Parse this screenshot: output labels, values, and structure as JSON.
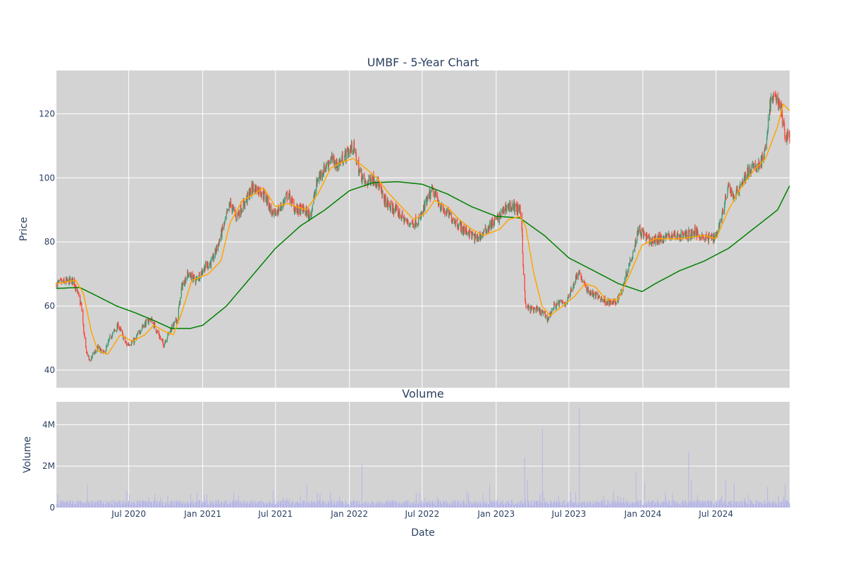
{
  "chart_data": [
    {
      "type": "candlestick",
      "title": "UMBF - 5-Year Chart",
      "xlabel": "",
      "ylabel": "Price",
      "ylim": [
        34.5,
        133.5
      ],
      "yticks": [
        40,
        60,
        80,
        100,
        120
      ],
      "xlim": [
        "2020-01-03",
        "2024-12-31"
      ],
      "grid": true,
      "colors": {
        "background": "#d3d3d3",
        "grid": "#ffffff",
        "up": "#3d9970",
        "down": "#ff4136",
        "ma_short": "#ffa500",
        "ma_long": "#008000"
      },
      "price_anchors": [
        [
          "2020-01-03",
          67
        ],
        [
          "2020-02-15",
          68
        ],
        [
          "2020-03-05",
          60
        ],
        [
          "2020-03-15",
          47
        ],
        [
          "2020-03-25",
          43
        ],
        [
          "2020-04-15",
          47
        ],
        [
          "2020-05-01",
          45
        ],
        [
          "2020-05-15",
          50
        ],
        [
          "2020-06-05",
          54
        ],
        [
          "2020-06-25",
          48
        ],
        [
          "2020-07-15",
          49
        ],
        [
          "2020-08-05",
          54
        ],
        [
          "2020-08-25",
          56
        ],
        [
          "2020-09-10",
          52
        ],
        [
          "2020-09-25",
          48
        ],
        [
          "2020-10-10",
          52
        ],
        [
          "2020-10-30",
          56
        ],
        [
          "2020-11-10",
          66
        ],
        [
          "2020-11-25",
          70
        ],
        [
          "2020-12-15",
          68
        ],
        [
          "2021-01-05",
          72
        ],
        [
          "2021-01-25",
          74
        ],
        [
          "2021-02-10",
          80
        ],
        [
          "2021-02-25",
          86
        ],
        [
          "2021-03-10",
          92
        ],
        [
          "2021-03-25",
          88
        ],
        [
          "2021-04-15",
          92
        ],
        [
          "2021-05-05",
          97
        ],
        [
          "2021-05-25",
          96
        ],
        [
          "2021-06-10",
          93
        ],
        [
          "2021-06-25",
          88
        ],
        [
          "2021-07-15",
          91
        ],
        [
          "2021-08-01",
          95
        ],
        [
          "2021-08-20",
          90
        ],
        [
          "2021-09-10",
          90
        ],
        [
          "2021-09-25",
          88
        ],
        [
          "2021-10-15",
          100
        ],
        [
          "2021-11-01",
          103
        ],
        [
          "2021-11-15",
          106
        ],
        [
          "2021-12-01",
          104
        ],
        [
          "2021-12-15",
          106
        ],
        [
          "2022-01-10",
          110
        ],
        [
          "2022-01-25",
          102
        ],
        [
          "2022-02-10",
          98
        ],
        [
          "2022-02-25",
          100
        ],
        [
          "2022-03-10",
          99
        ],
        [
          "2022-03-25",
          94
        ],
        [
          "2022-04-10",
          91
        ],
        [
          "2022-04-25",
          90
        ],
        [
          "2022-05-10",
          88
        ],
        [
          "2022-05-25",
          86
        ],
        [
          "2022-06-10",
          86
        ],
        [
          "2022-06-25",
          87
        ],
        [
          "2022-07-10",
          92
        ],
        [
          "2022-07-25",
          96
        ],
        [
          "2022-08-05",
          94
        ],
        [
          "2022-08-20",
          90
        ],
        [
          "2022-09-10",
          88
        ],
        [
          "2022-09-25",
          86
        ],
        [
          "2022-10-10",
          84
        ],
        [
          "2022-10-25",
          83
        ],
        [
          "2022-11-10",
          81
        ],
        [
          "2022-11-25",
          82
        ],
        [
          "2022-12-15",
          85
        ],
        [
          "2023-01-10",
          88
        ],
        [
          "2023-01-25",
          91
        ],
        [
          "2023-02-15",
          91
        ],
        [
          "2023-03-05",
          89
        ],
        [
          "2023-03-10",
          70
        ],
        [
          "2023-03-15",
          60
        ],
        [
          "2023-03-25",
          59
        ],
        [
          "2023-04-10",
          59
        ],
        [
          "2023-04-25",
          58
        ],
        [
          "2023-05-10",
          56
        ],
        [
          "2023-05-25",
          60
        ],
        [
          "2023-06-10",
          61
        ],
        [
          "2023-06-25",
          61
        ],
        [
          "2023-07-10",
          66
        ],
        [
          "2023-07-25",
          71
        ],
        [
          "2023-08-10",
          66
        ],
        [
          "2023-08-25",
          64
        ],
        [
          "2023-09-10",
          63
        ],
        [
          "2023-09-25",
          62
        ],
        [
          "2023-10-10",
          61
        ],
        [
          "2023-10-25",
          61
        ],
        [
          "2023-11-10",
          65
        ],
        [
          "2023-11-25",
          72
        ],
        [
          "2023-12-10",
          78
        ],
        [
          "2023-12-20",
          84
        ],
        [
          "2024-01-05",
          82
        ],
        [
          "2024-01-20",
          80
        ],
        [
          "2024-02-10",
          81
        ],
        [
          "2024-03-10",
          82
        ],
        [
          "2024-04-10",
          82
        ],
        [
          "2024-05-10",
          83
        ],
        [
          "2024-06-10",
          81
        ],
        [
          "2024-07-01",
          82
        ],
        [
          "2024-07-15",
          88
        ],
        [
          "2024-08-01",
          97
        ],
        [
          "2024-08-15",
          94
        ],
        [
          "2024-09-01",
          98
        ],
        [
          "2024-09-20",
          102
        ],
        [
          "2024-10-15",
          104
        ],
        [
          "2024-11-01",
          108
        ],
        [
          "2024-11-10",
          122
        ],
        [
          "2024-11-25",
          126
        ],
        [
          "2024-12-10",
          121
        ],
        [
          "2024-12-20",
          113
        ],
        [
          "2024-12-31",
          113
        ]
      ],
      "ma_short_anchors": [
        [
          "2020-01-03",
          67
        ],
        [
          "2020-02-20",
          68
        ],
        [
          "2020-03-10",
          64
        ],
        [
          "2020-03-30",
          52
        ],
        [
          "2020-04-15",
          46
        ],
        [
          "2020-05-10",
          45
        ],
        [
          "2020-06-10",
          51
        ],
        [
          "2020-07-10",
          49
        ],
        [
          "2020-08-10",
          51
        ],
        [
          "2020-09-01",
          54
        ],
        [
          "2020-09-30",
          52
        ],
        [
          "2020-10-20",
          51
        ],
        [
          "2020-11-10",
          58
        ],
        [
          "2020-12-05",
          68
        ],
        [
          "2021-01-15",
          70
        ],
        [
          "2021-02-15",
          74
        ],
        [
          "2021-03-10",
          86
        ],
        [
          "2021-04-10",
          93
        ],
        [
          "2021-05-10",
          95
        ],
        [
          "2021-06-01",
          97
        ],
        [
          "2021-07-01",
          91
        ],
        [
          "2021-08-01",
          92
        ],
        [
          "2021-09-15",
          90
        ],
        [
          "2021-10-15",
          95
        ],
        [
          "2021-11-15",
          103
        ],
        [
          "2021-12-15",
          105
        ],
        [
          "2022-01-10",
          106
        ],
        [
          "2022-02-10",
          103
        ],
        [
          "2022-03-10",
          100
        ],
        [
          "2022-04-10",
          95
        ],
        [
          "2022-05-10",
          91
        ],
        [
          "2022-06-10",
          87
        ],
        [
          "2022-07-10",
          89
        ],
        [
          "2022-08-01",
          93
        ],
        [
          "2022-09-01",
          91
        ],
        [
          "2022-10-01",
          87
        ],
        [
          "2022-11-01",
          84
        ],
        [
          "2022-12-01",
          82
        ],
        [
          "2023-01-10",
          84
        ],
        [
          "2023-02-01",
          87
        ],
        [
          "2023-03-01",
          88
        ],
        [
          "2023-03-15",
          85
        ],
        [
          "2023-04-05",
          70
        ],
        [
          "2023-04-25",
          60
        ],
        [
          "2023-05-15",
          57
        ],
        [
          "2023-06-15",
          60
        ],
        [
          "2023-07-15",
          63
        ],
        [
          "2023-08-10",
          67
        ],
        [
          "2023-09-05",
          66
        ],
        [
          "2023-10-01",
          62
        ],
        [
          "2023-10-30",
          62
        ],
        [
          "2023-11-30",
          70
        ],
        [
          "2023-12-30",
          79
        ],
        [
          "2024-02-01",
          81
        ],
        [
          "2024-04-01",
          81
        ],
        [
          "2024-06-01",
          82
        ],
        [
          "2024-07-01",
          81
        ],
        [
          "2024-08-01",
          90
        ],
        [
          "2024-09-01",
          97
        ],
        [
          "2024-10-01",
          102
        ],
        [
          "2024-11-01",
          106
        ],
        [
          "2024-12-01",
          116
        ],
        [
          "2024-12-15",
          123
        ],
        [
          "2024-12-31",
          121
        ]
      ],
      "ma_long_anchors": [
        [
          "2020-01-03",
          65.5
        ],
        [
          "2020-03-01",
          65.8
        ],
        [
          "2020-04-15",
          63
        ],
        [
          "2020-06-01",
          60
        ],
        [
          "2020-07-15",
          58
        ],
        [
          "2020-09-01",
          55.5
        ],
        [
          "2020-10-15",
          53
        ],
        [
          "2020-12-01",
          53
        ],
        [
          "2021-01-01",
          54
        ],
        [
          "2021-03-01",
          60
        ],
        [
          "2021-05-01",
          69
        ],
        [
          "2021-07-01",
          78
        ],
        [
          "2021-09-01",
          85
        ],
        [
          "2021-11-01",
          90
        ],
        [
          "2022-01-01",
          96
        ],
        [
          "2022-03-01",
          98.5
        ],
        [
          "2022-05-01",
          98.8
        ],
        [
          "2022-07-01",
          98
        ],
        [
          "2022-09-01",
          95
        ],
        [
          "2022-11-01",
          91
        ],
        [
          "2023-01-01",
          88
        ],
        [
          "2023-03-01",
          87.5
        ],
        [
          "2023-05-01",
          82
        ],
        [
          "2023-07-01",
          75
        ],
        [
          "2023-09-01",
          71
        ],
        [
          "2023-11-01",
          67
        ],
        [
          "2023-12-30",
          64.5
        ],
        [
          "2024-02-01",
          67
        ],
        [
          "2024-04-01",
          71
        ],
        [
          "2024-06-01",
          74
        ],
        [
          "2024-08-01",
          78
        ],
        [
          "2024-10-01",
          84
        ],
        [
          "2024-12-01",
          90
        ],
        [
          "2024-12-31",
          97.5
        ]
      ]
    },
    {
      "type": "bar",
      "title": "Volume",
      "xlabel": "Date",
      "ylabel": "Volume",
      "ylim": [
        0,
        5100000
      ],
      "yticks": [
        0,
        2000000,
        4000000
      ],
      "ytick_labels": [
        "0",
        "2M",
        "4M"
      ],
      "xticks": [
        "2020-07-01",
        "2021-01-01",
        "2021-07-01",
        "2022-01-01",
        "2022-07-01",
        "2023-01-01",
        "2023-07-01",
        "2024-01-01",
        "2024-07-01"
      ],
      "xtick_labels": [
        "Jul 2020",
        "Jan 2021",
        "Jul 2021",
        "Jan 2022",
        "Jul 2022",
        "Jan 2023",
        "Jul 2023",
        "Jan 2024",
        "Jul 2024"
      ],
      "grid": true,
      "colors": {
        "bar": "#b5b5ea"
      },
      "volume_base": 250000,
      "volume_spikes": [
        [
          "2020-03-20",
          1100000
        ],
        [
          "2020-06-26",
          800000
        ],
        [
          "2020-12-18",
          700000
        ],
        [
          "2021-03-19",
          750000
        ],
        [
          "2021-06-25",
          800000
        ],
        [
          "2021-09-17",
          1100000
        ],
        [
          "2022-02-01",
          2100000
        ],
        [
          "2022-06-24",
          700000
        ],
        [
          "2022-10-20",
          800000
        ],
        [
          "2022-12-16",
          1100000
        ],
        [
          "2023-03-13",
          2400000
        ],
        [
          "2023-03-20",
          1300000
        ],
        [
          "2023-04-26",
          3800000
        ],
        [
          "2023-07-27",
          4800000
        ],
        [
          "2023-12-15",
          1700000
        ],
        [
          "2024-01-05",
          1200000
        ],
        [
          "2024-03-15",
          700000
        ],
        [
          "2024-04-24",
          2700000
        ],
        [
          "2024-05-01",
          1300000
        ],
        [
          "2024-07-25",
          1300000
        ],
        [
          "2024-08-15",
          1200000
        ],
        [
          "2024-11-06",
          1000000
        ],
        [
          "2024-12-20",
          1100000
        ]
      ]
    }
  ]
}
